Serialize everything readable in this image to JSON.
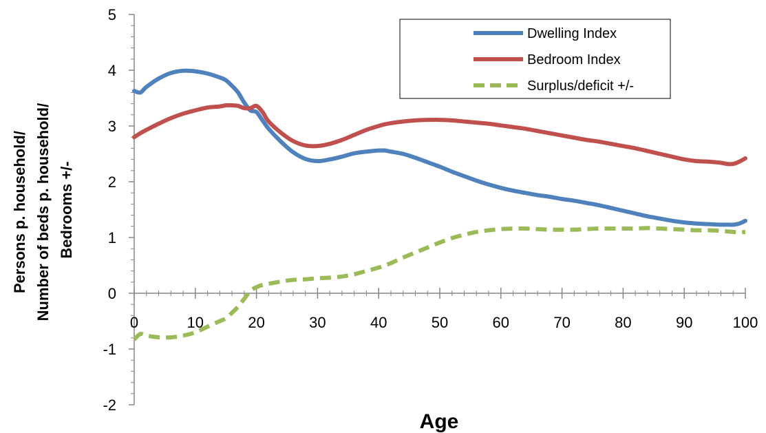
{
  "chart_data": {
    "type": "line",
    "title": "",
    "xlabel": "Age",
    "ylabel_lines": [
      "Persons p. household/",
      "Number of beds p. household/",
      "Bedrooms  +/-"
    ],
    "xlim": [
      0,
      100
    ],
    "ylim": [
      -2,
      5
    ],
    "x_ticks": [
      "0",
      "10",
      "20",
      "30",
      "40",
      "50",
      "60",
      "70",
      "80",
      "90",
      "100"
    ],
    "y_ticks": [
      "-2",
      "-1",
      "0",
      "1",
      "2",
      "3",
      "4",
      "5"
    ],
    "grid": false,
    "legend_position": "top-right",
    "x": [
      0,
      1,
      2,
      4,
      6,
      8,
      10,
      12,
      14,
      15,
      16,
      17,
      18,
      19,
      20,
      21,
      22,
      24,
      26,
      28,
      30,
      32,
      34,
      36,
      38,
      40,
      41,
      42,
      44,
      46,
      48,
      50,
      52,
      54,
      56,
      58,
      60,
      62,
      64,
      66,
      68,
      70,
      72,
      74,
      76,
      78,
      80,
      82,
      84,
      86,
      88,
      90,
      92,
      94,
      96,
      97,
      98,
      99,
      100
    ],
    "series": [
      {
        "name": "Dwelling Index",
        "color": "#4F81BD",
        "dash": "solid",
        "values": [
          3.63,
          3.6,
          3.7,
          3.85,
          3.95,
          3.99,
          3.98,
          3.94,
          3.87,
          3.82,
          3.72,
          3.6,
          3.42,
          3.28,
          3.25,
          3.1,
          2.95,
          2.72,
          2.53,
          2.41,
          2.37,
          2.4,
          2.45,
          2.51,
          2.54,
          2.56,
          2.56,
          2.54,
          2.5,
          2.43,
          2.35,
          2.27,
          2.18,
          2.1,
          2.02,
          1.95,
          1.89,
          1.84,
          1.8,
          1.76,
          1.73,
          1.69,
          1.66,
          1.62,
          1.58,
          1.53,
          1.48,
          1.43,
          1.38,
          1.34,
          1.3,
          1.27,
          1.25,
          1.24,
          1.23,
          1.23,
          1.23,
          1.25,
          1.3
        ]
      },
      {
        "name": "Bedroom Index",
        "color": "#C0504D",
        "dash": "solid",
        "values": [
          2.8,
          2.87,
          2.93,
          3.04,
          3.14,
          3.22,
          3.28,
          3.33,
          3.35,
          3.37,
          3.37,
          3.36,
          3.32,
          3.32,
          3.36,
          3.25,
          3.08,
          2.88,
          2.73,
          2.65,
          2.64,
          2.68,
          2.75,
          2.84,
          2.93,
          3.0,
          3.03,
          3.05,
          3.08,
          3.1,
          3.11,
          3.11,
          3.1,
          3.08,
          3.06,
          3.04,
          3.01,
          2.98,
          2.95,
          2.91,
          2.87,
          2.83,
          2.79,
          2.75,
          2.72,
          2.68,
          2.64,
          2.6,
          2.55,
          2.5,
          2.45,
          2.4,
          2.37,
          2.36,
          2.34,
          2.32,
          2.32,
          2.36,
          2.42
        ]
      },
      {
        "name": "Surplus/deficit +/-",
        "color": "#9BBB59",
        "dash": "dashed",
        "values": [
          -0.83,
          -0.73,
          -0.76,
          -0.79,
          -0.79,
          -0.76,
          -0.7,
          -0.6,
          -0.5,
          -0.45,
          -0.35,
          -0.24,
          -0.1,
          0.04,
          0.11,
          0.15,
          0.17,
          0.21,
          0.24,
          0.25,
          0.27,
          0.28,
          0.3,
          0.34,
          0.4,
          0.46,
          0.5,
          0.54,
          0.64,
          0.73,
          0.82,
          0.91,
          0.99,
          1.05,
          1.1,
          1.13,
          1.15,
          1.16,
          1.16,
          1.15,
          1.14,
          1.14,
          1.14,
          1.15,
          1.16,
          1.16,
          1.16,
          1.16,
          1.17,
          1.16,
          1.15,
          1.14,
          1.13,
          1.13,
          1.12,
          1.11,
          1.1,
          1.09,
          1.1
        ]
      }
    ]
  }
}
